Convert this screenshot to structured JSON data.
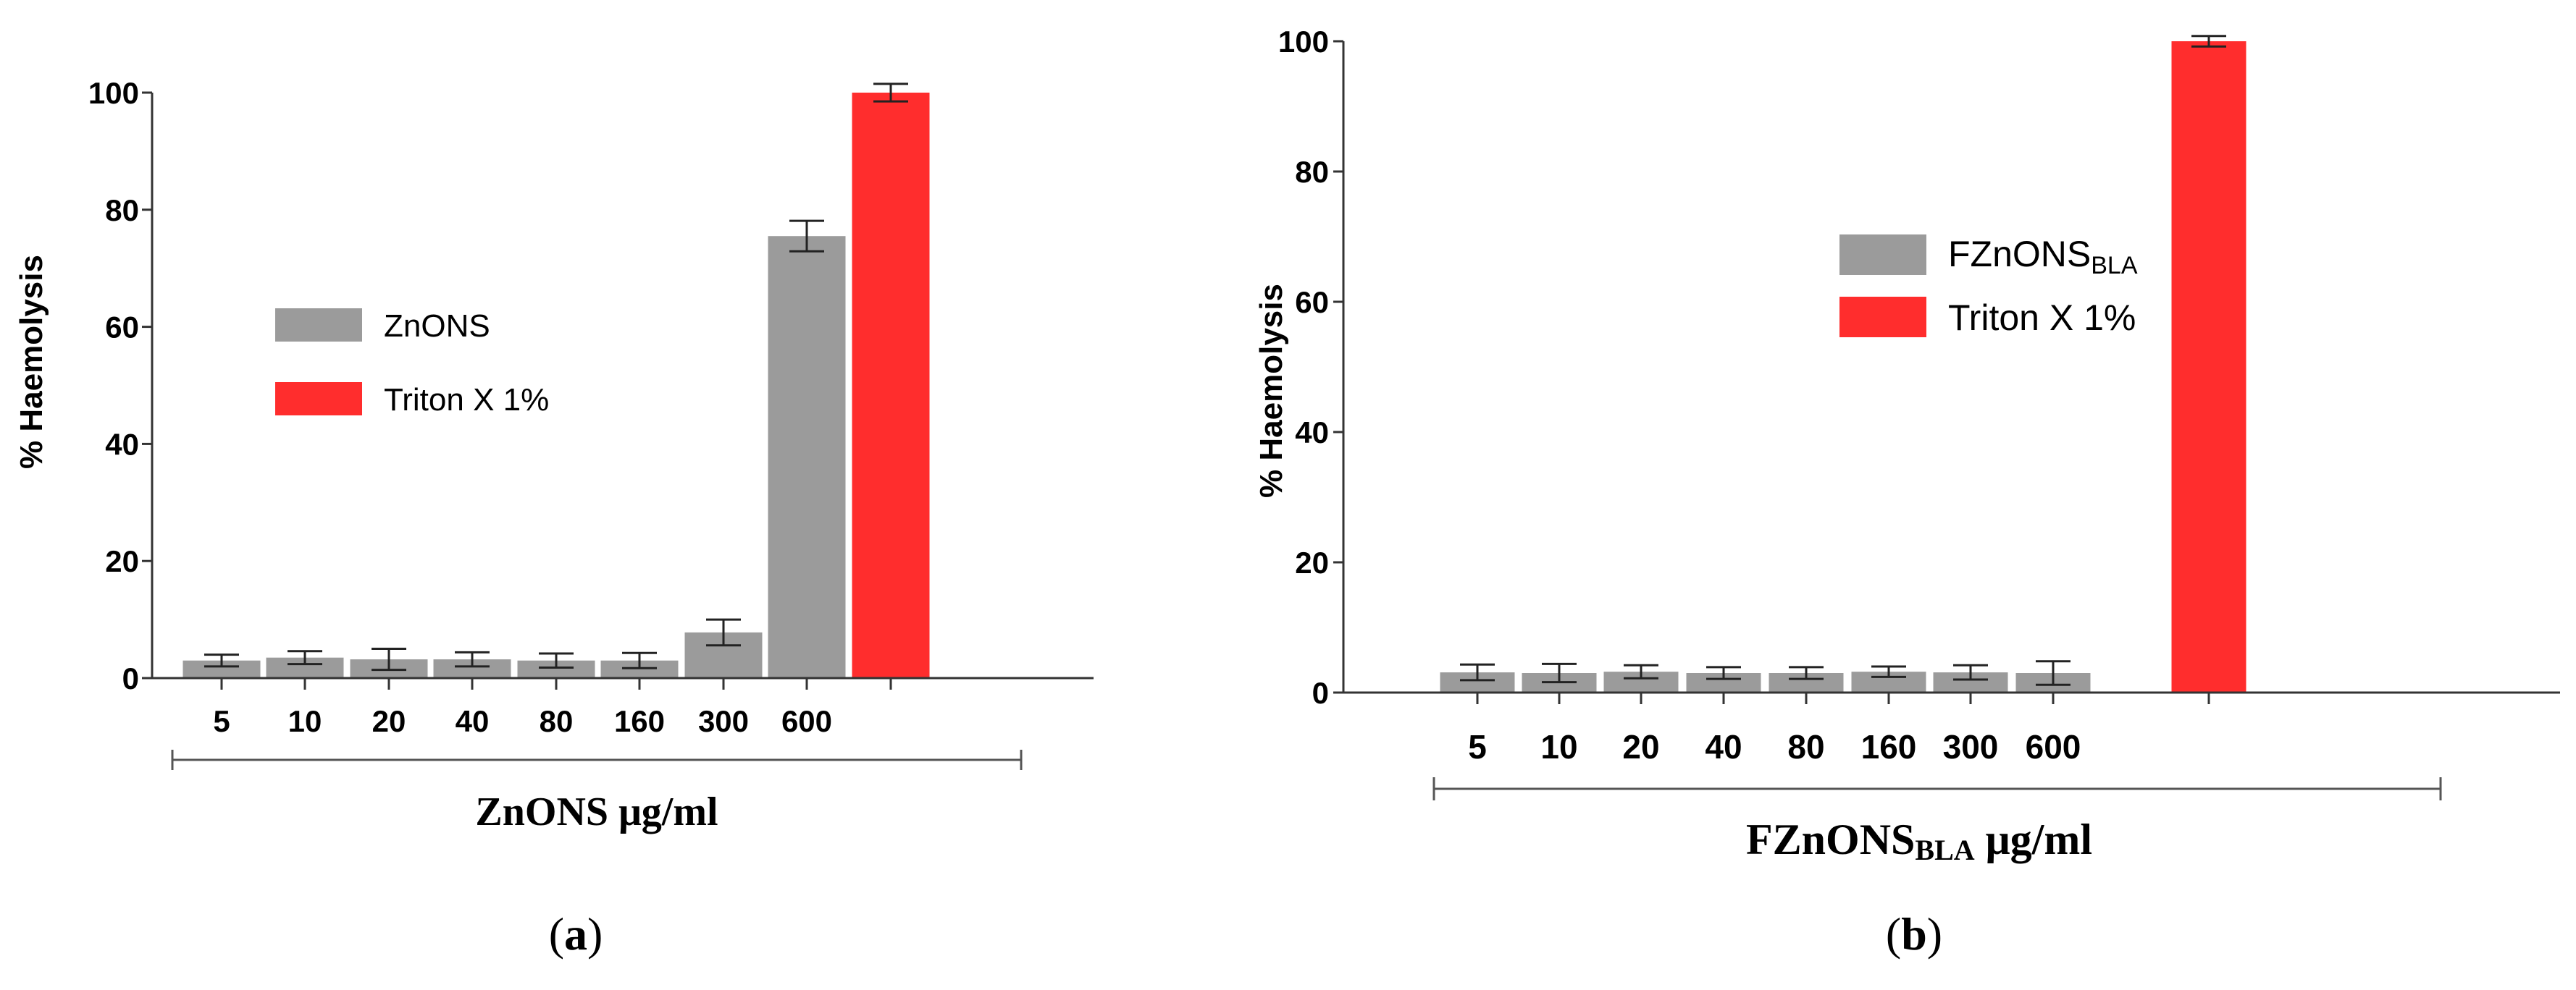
{
  "colors": {
    "sample": "#9b9b9b",
    "control": "#ff2d2d",
    "axis": "#333333",
    "text": "#000000"
  },
  "panels": [
    {
      "caption_letter": "a",
      "legend_sample": "ZnONS",
      "legend_control": "Triton X 1%",
      "xlabel": "ZnONS μg/ml",
      "ylabel": "% Haemolysis"
    },
    {
      "caption_letter": "b",
      "legend_sample_main": "FZnONS",
      "legend_sample_sub": "BLA",
      "legend_control": "Triton X 1%",
      "xlabel_main": "FZnONS",
      "xlabel_sub": "BLA",
      "xlabel_tail": " μg/ml",
      "ylabel": "% Haemolysis"
    }
  ],
  "chart_data": [
    {
      "type": "bar",
      "ylabel": "% Haemolysis",
      "xlabel": "ZnONS μg/ml",
      "ylim": [
        0,
        100
      ],
      "yticks": [
        0,
        20,
        40,
        60,
        80,
        100
      ],
      "categories": [
        "5",
        "10",
        "20",
        "40",
        "80",
        "160",
        "300",
        "600",
        ""
      ],
      "series": [
        {
          "name": "ZnONS",
          "color": "#9b9b9b",
          "values": [
            3,
            3.5,
            3.2,
            3.2,
            3,
            3,
            7.8,
            75.5,
            null
          ],
          "errors": [
            1.0,
            1.1,
            1.8,
            1.2,
            1.2,
            1.3,
            2.2,
            2.6,
            null
          ]
        },
        {
          "name": "Triton X 1%",
          "color": "#ff2d2d",
          "values": [
            null,
            null,
            null,
            null,
            null,
            null,
            null,
            null,
            100
          ],
          "errors": [
            null,
            null,
            null,
            null,
            null,
            null,
            null,
            null,
            1.5
          ]
        }
      ],
      "legend": "center-left",
      "grid": false
    },
    {
      "type": "bar",
      "ylabel": "% Haemolysis",
      "xlabel": "FZnONSBLA μg/ml",
      "ylim": [
        0,
        100
      ],
      "yticks": [
        0,
        20,
        40,
        60,
        80,
        100
      ],
      "categories": [
        "5",
        "10",
        "20",
        "40",
        "80",
        "160",
        "300",
        "600",
        ""
      ],
      "series": [
        {
          "name": "FZnONSBLA",
          "color": "#9b9b9b",
          "values": [
            3.1,
            3,
            3.2,
            3,
            3,
            3.2,
            3.1,
            3,
            null
          ],
          "errors": [
            1.2,
            1.4,
            1.0,
            0.9,
            0.9,
            0.8,
            1.1,
            1.8,
            null
          ]
        },
        {
          "name": "Triton X 1%",
          "color": "#ff2d2d",
          "values": [
            null,
            null,
            null,
            null,
            null,
            null,
            null,
            null,
            100
          ],
          "errors": [
            null,
            null,
            null,
            null,
            null,
            null,
            null,
            null,
            0.8
          ]
        }
      ],
      "legend": "upper-center",
      "grid": false
    }
  ]
}
